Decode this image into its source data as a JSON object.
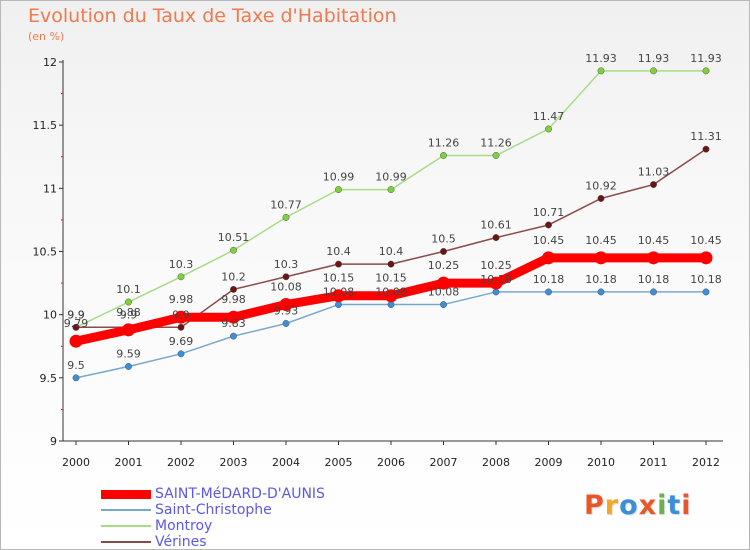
{
  "header": {
    "title": "Evolution du Taux de Taxe d'Habitation",
    "unit": "(en %)"
  },
  "logo": {
    "text": "Proxiti",
    "colors": [
      "#e8562a",
      "#f5a623",
      "#3a8fd6",
      "#e8562a",
      "#6ab04c",
      "#3a8fd6",
      "#e8562a"
    ]
  },
  "chart_data": {
    "type": "line",
    "categories": [
      "2000",
      "2001",
      "2002",
      "2003",
      "2004",
      "2005",
      "2006",
      "2007",
      "2008",
      "2009",
      "2010",
      "2011",
      "2012"
    ],
    "ylim": [
      9,
      12
    ],
    "yticks": [
      "9",
      "9.5",
      "10",
      "10.5",
      "11",
      "11.5",
      "12"
    ],
    "grid": false,
    "legend_placement": "bottom-left",
    "series": [
      {
        "name": "SAINT-MéDARD-D'AUNIS",
        "color": "#ff0000",
        "marker": "#ff0000",
        "width": 9,
        "values": [
          9.79,
          9.88,
          9.98,
          9.98,
          10.08,
          10.15,
          10.15,
          10.25,
          10.25,
          10.45,
          10.45,
          10.45,
          10.45
        ]
      },
      {
        "name": "Saint-Christophe",
        "color": "#79a8cf",
        "marker": "#3b8fd8",
        "width": 1.5,
        "values": [
          9.5,
          9.59,
          9.69,
          9.83,
          9.93,
          10.08,
          10.08,
          10.08,
          10.18,
          10.18,
          10.18,
          10.18,
          10.18
        ]
      },
      {
        "name": "Montroy",
        "color": "#a6dd86",
        "marker": "#7fd13a",
        "width": 1.5,
        "values": [
          9.9,
          10.1,
          10.3,
          10.51,
          10.77,
          10.99,
          10.99,
          11.26,
          11.26,
          11.47,
          11.93,
          11.93,
          11.93
        ]
      },
      {
        "name": "Vérines",
        "color": "#8b4a4a",
        "marker": "#6b1414",
        "width": 1.5,
        "values": [
          9.9,
          9.9,
          9.9,
          10.2,
          10.3,
          10.4,
          10.4,
          10.5,
          10.61,
          10.71,
          10.92,
          11.03,
          11.31
        ]
      }
    ]
  }
}
